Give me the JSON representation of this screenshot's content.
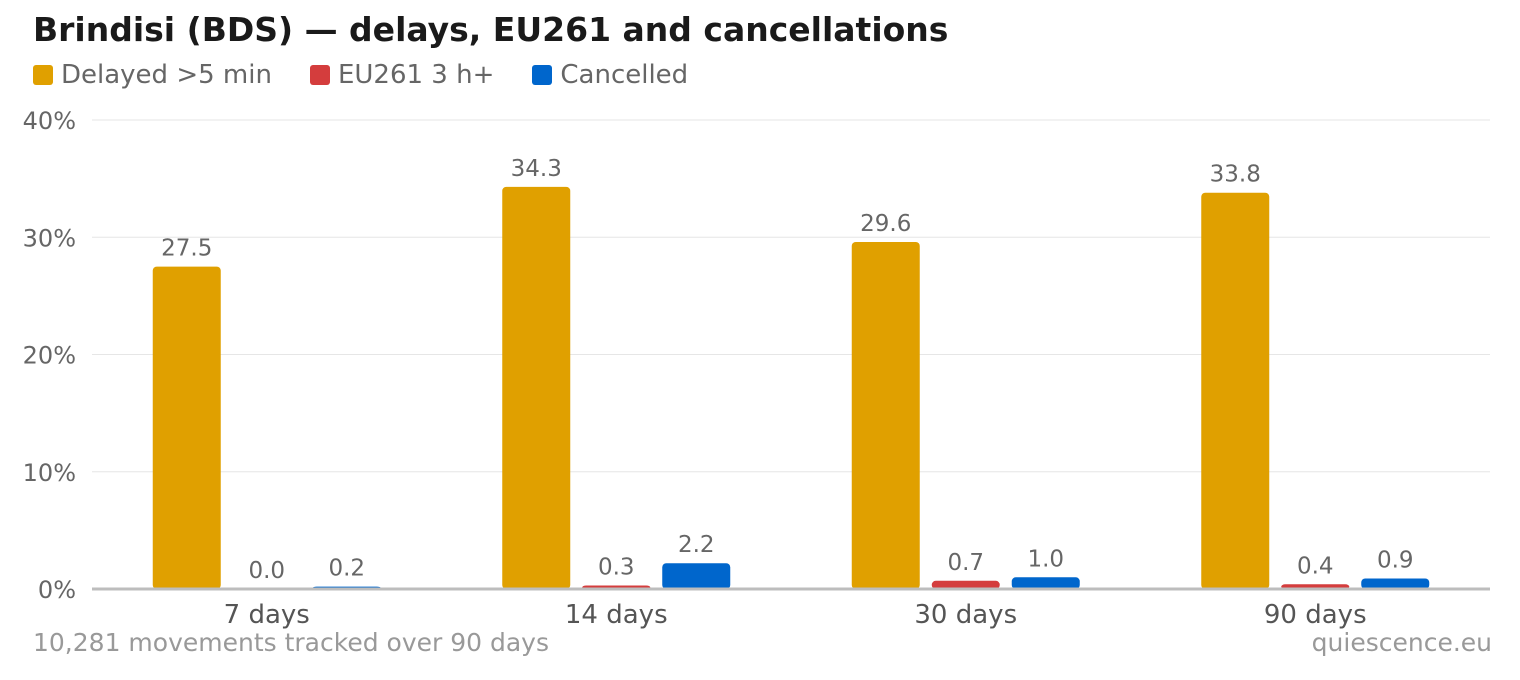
{
  "title": "Brindisi (BDS) — delays, EU261 and cancellations",
  "footer": {
    "left": "10,281 movements tracked over 90 days",
    "right": "quiescence.eu"
  },
  "chart_data": {
    "type": "bar",
    "title": "Brindisi (BDS) — delays, EU261 and cancellations",
    "xlabel": "",
    "ylabel": "",
    "ylim": [
      0,
      40
    ],
    "yticks": [
      "0%",
      "10%",
      "20%",
      "30%",
      "40%"
    ],
    "ytick_values": [
      0,
      10,
      20,
      30,
      40
    ],
    "grid": true,
    "legend_position": "top-left",
    "categories": [
      "7 days",
      "14 days",
      "30 days",
      "90 days"
    ],
    "series": [
      {
        "name": "Delayed >5 min",
        "color": "#e0a000",
        "values": [
          27.5,
          34.3,
          29.6,
          33.8
        ],
        "labels": [
          "27.5",
          "34.3",
          "29.6",
          "33.8"
        ]
      },
      {
        "name": "EU261 3 h+",
        "color": "#d43d3d",
        "values": [
          0.0,
          0.3,
          0.7,
          0.4
        ],
        "labels": [
          "0.0",
          "0.3",
          "0.7",
          "0.4"
        ]
      },
      {
        "name": "Cancelled",
        "color": "#0066cc",
        "values": [
          0.2,
          2.2,
          1.0,
          0.9
        ],
        "labels": [
          "0.2",
          "2.2",
          "1.0",
          "0.9"
        ]
      }
    ]
  }
}
